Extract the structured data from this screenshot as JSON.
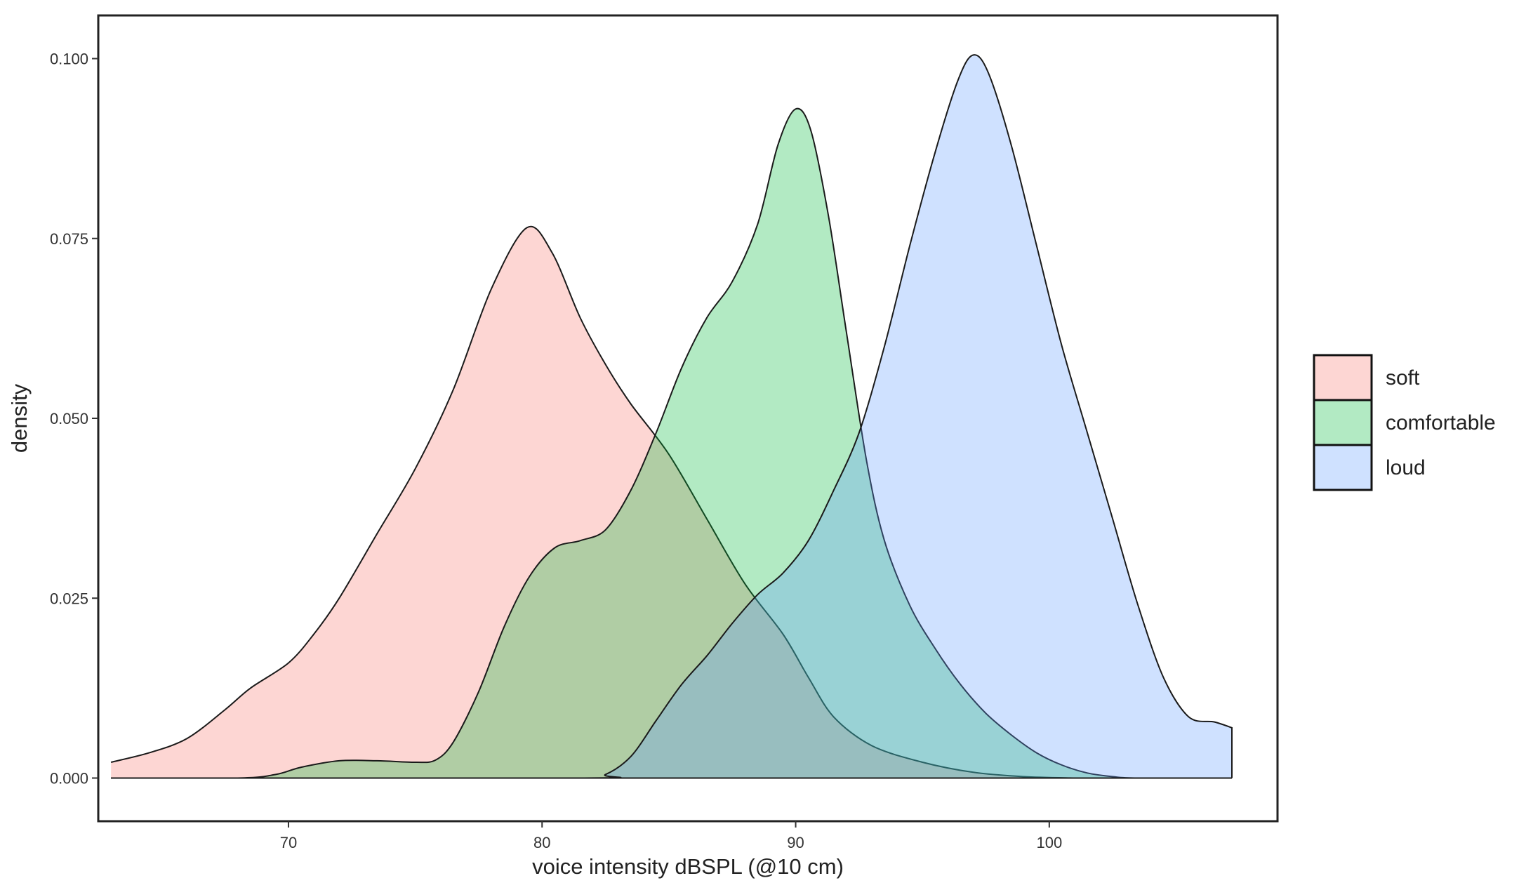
{
  "chart_data": {
    "type": "area",
    "subtype": "density",
    "title": "",
    "xlabel": "voice intensity dBSPL (@10 cm)",
    "ylabel": "density",
    "xlim": [
      62.5,
      109
    ],
    "ylim": [
      -0.006,
      0.106
    ],
    "x_ticks": [
      70,
      80,
      90,
      100
    ],
    "y_ticks": [
      0.0,
      0.025,
      0.05,
      0.075,
      0.1
    ],
    "x_tick_labels": [
      "70",
      "80",
      "90",
      "100"
    ],
    "y_tick_labels": [
      "0.000",
      "0.025",
      "0.050",
      "0.075",
      "0.100"
    ],
    "grid": false,
    "legend_position": "right",
    "series": [
      {
        "name": "soft",
        "color": "#F8766D",
        "points": [
          [
            63.0,
            0.0022
          ],
          [
            64.5,
            0.0035
          ],
          [
            66.0,
            0.0055
          ],
          [
            67.5,
            0.0095
          ],
          [
            68.5,
            0.0125
          ],
          [
            70.0,
            0.016
          ],
          [
            71.0,
            0.02
          ],
          [
            72.0,
            0.025
          ],
          [
            73.5,
            0.034
          ],
          [
            75.0,
            0.043
          ],
          [
            76.5,
            0.054
          ],
          [
            78.0,
            0.068
          ],
          [
            79.4,
            0.0765
          ],
          [
            80.4,
            0.073
          ],
          [
            81.5,
            0.064
          ],
          [
            82.5,
            0.0575
          ],
          [
            83.5,
            0.052
          ],
          [
            85.0,
            0.045
          ],
          [
            86.5,
            0.036
          ],
          [
            88.0,
            0.027
          ],
          [
            89.5,
            0.02
          ],
          [
            90.5,
            0.014
          ],
          [
            91.5,
            0.0085
          ],
          [
            93.0,
            0.0045
          ],
          [
            95.0,
            0.0022
          ],
          [
            97.0,
            0.0008
          ],
          [
            99.0,
            0.0002
          ],
          [
            101.0,
            0.0
          ]
        ]
      },
      {
        "name": "comfortable",
        "color": "#00BA38",
        "points": [
          [
            63.0,
            0.0
          ],
          [
            68.0,
            0.0
          ],
          [
            69.5,
            0.0005
          ],
          [
            70.5,
            0.0015
          ],
          [
            72.0,
            0.0024
          ],
          [
            73.5,
            0.0024
          ],
          [
            75.0,
            0.0022
          ],
          [
            75.8,
            0.0025
          ],
          [
            76.5,
            0.005
          ],
          [
            77.5,
            0.012
          ],
          [
            78.5,
            0.021
          ],
          [
            79.5,
            0.028
          ],
          [
            80.5,
            0.032
          ],
          [
            81.5,
            0.033
          ],
          [
            82.5,
            0.0345
          ],
          [
            83.5,
            0.04
          ],
          [
            84.5,
            0.048
          ],
          [
            85.5,
            0.057
          ],
          [
            86.5,
            0.064
          ],
          [
            87.5,
            0.069
          ],
          [
            88.5,
            0.077
          ],
          [
            89.3,
            0.088
          ],
          [
            90.0,
            0.093
          ],
          [
            90.6,
            0.09
          ],
          [
            91.3,
            0.078
          ],
          [
            92.0,
            0.062
          ],
          [
            92.8,
            0.044
          ],
          [
            93.5,
            0.033
          ],
          [
            94.5,
            0.024
          ],
          [
            95.5,
            0.018
          ],
          [
            96.5,
            0.013
          ],
          [
            97.5,
            0.009
          ],
          [
            98.5,
            0.006
          ],
          [
            99.5,
            0.0035
          ],
          [
            100.5,
            0.0018
          ],
          [
            101.5,
            0.0007
          ],
          [
            102.5,
            0.0002
          ],
          [
            103.5,
            0.0
          ],
          [
            107.2,
            0.0
          ]
        ]
      },
      {
        "name": "loud",
        "color": "#619CFF",
        "points": [
          [
            63.0,
            0.0
          ],
          [
            81.5,
            0.0
          ],
          [
            82.5,
            0.0005
          ],
          [
            83.5,
            0.003
          ],
          [
            84.5,
            0.008
          ],
          [
            85.5,
            0.013
          ],
          [
            86.5,
            0.017
          ],
          [
            87.5,
            0.0215
          ],
          [
            88.5,
            0.0255
          ],
          [
            89.5,
            0.0285
          ],
          [
            90.5,
            0.033
          ],
          [
            91.5,
            0.04
          ],
          [
            92.5,
            0.048
          ],
          [
            93.5,
            0.06
          ],
          [
            94.5,
            0.074
          ],
          [
            95.5,
            0.087
          ],
          [
            96.4,
            0.097
          ],
          [
            97.0,
            0.1005
          ],
          [
            97.6,
            0.098
          ],
          [
            98.5,
            0.088
          ],
          [
            99.5,
            0.074
          ],
          [
            100.5,
            0.06
          ],
          [
            101.5,
            0.048
          ],
          [
            102.5,
            0.036
          ],
          [
            103.5,
            0.024
          ],
          [
            104.5,
            0.014
          ],
          [
            105.5,
            0.0085
          ],
          [
            106.5,
            0.0078
          ],
          [
            107.2,
            0.007
          ]
        ]
      }
    ]
  }
}
